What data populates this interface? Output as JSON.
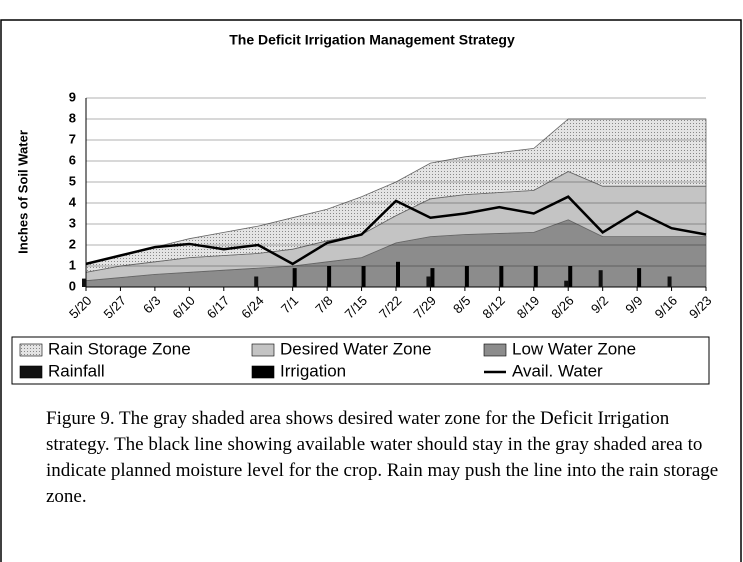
{
  "chart_data": {
    "type": "stacked_area_bar_line",
    "title": "The Deficit Irrigation Management Strategy",
    "y_label": "Inches of Soil Water",
    "categories": [
      "5/20",
      "5/27",
      "6/3",
      "6/10",
      "6/17",
      "6/24",
      "7/1",
      "7/8",
      "7/15",
      "7/22",
      "7/29",
      "8/5",
      "8/12",
      "8/19",
      "8/26",
      "9/2",
      "9/9",
      "9/16",
      "9/23"
    ],
    "ylim": [
      0,
      9
    ],
    "yticks": [
      0,
      1,
      2,
      3,
      4,
      5,
      6,
      7,
      8,
      9
    ],
    "grid": true,
    "series": [
      {
        "name": "Low Water Zone",
        "kind": "area",
        "color": "#8c8c8c",
        "values": [
          0.3,
          0.45,
          0.6,
          0.7,
          0.8,
          0.9,
          1.0,
          1.2,
          1.4,
          2.1,
          2.4,
          2.5,
          2.55,
          2.6,
          3.2,
          2.4,
          2.4,
          2.4,
          2.4
        ]
      },
      {
        "name": "Desired Water Zone",
        "kind": "area",
        "color": "#c4c4c4",
        "values": [
          0.4,
          0.55,
          0.6,
          0.7,
          0.7,
          0.7,
          0.8,
          1.0,
          1.1,
          1.3,
          1.8,
          1.9,
          1.95,
          2.0,
          2.3,
          2.4,
          2.4,
          2.4,
          2.4
        ]
      },
      {
        "name": "Rain Storage Zone",
        "kind": "area",
        "color": "#dcdcdc",
        "values": [
          0.4,
          0.5,
          0.7,
          0.9,
          1.1,
          1.3,
          1.5,
          1.5,
          1.8,
          1.6,
          1.7,
          1.8,
          1.9,
          2.0,
          2.5,
          3.2,
          3.2,
          3.2,
          3.2
        ]
      },
      {
        "name": "Rainfall",
        "kind": "bar",
        "color": "#111111",
        "values": [
          0.4,
          0,
          0,
          0,
          0,
          0.5,
          0,
          0,
          0,
          0,
          0.5,
          0,
          0,
          0,
          0.3,
          0.8,
          0,
          0.5,
          0
        ]
      },
      {
        "name": "Irrigation",
        "kind": "bar",
        "color": "#000000",
        "values": [
          0,
          0,
          0,
          0,
          0,
          0,
          0.9,
          1.0,
          1.0,
          1.2,
          0.9,
          1.0,
          1.0,
          1.0,
          1.0,
          0,
          0.9,
          0,
          0
        ]
      },
      {
        "name": "Avail. Water",
        "kind": "line",
        "color": "#000000",
        "values": [
          1.1,
          1.5,
          1.9,
          2.05,
          1.8,
          2.0,
          1.1,
          2.1,
          2.5,
          4.1,
          3.3,
          3.5,
          3.8,
          3.5,
          4.3,
          2.6,
          3.6,
          2.8,
          2.5
        ]
      }
    ],
    "caption": "Figure 9. The gray shaded area shows desired water zone for the Deficit Irrigation strategy. The black line showing available water should stay in the gray shaded area to indicate planned moisture level for the crop. Rain may push the line into the rain storage zone."
  }
}
